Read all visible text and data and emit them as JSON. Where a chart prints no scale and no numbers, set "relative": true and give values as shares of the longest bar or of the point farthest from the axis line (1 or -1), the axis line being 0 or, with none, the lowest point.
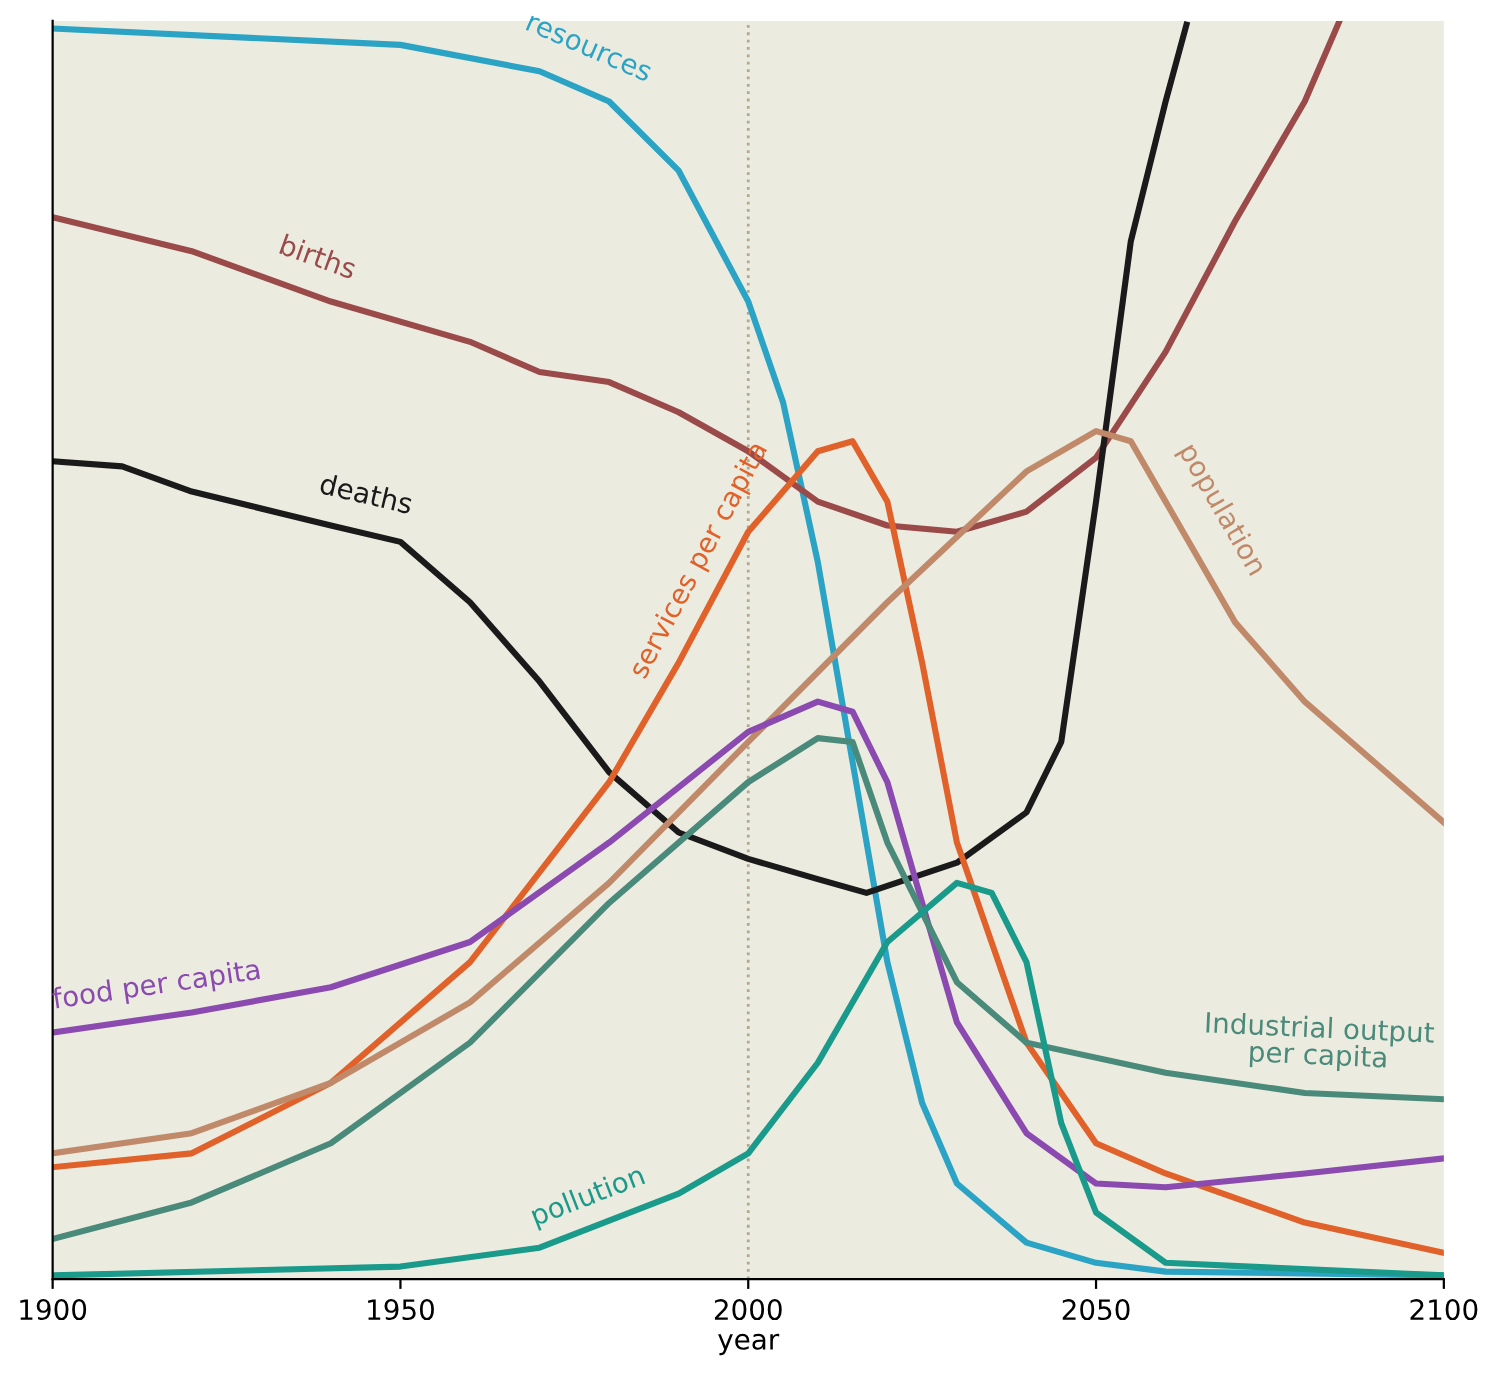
{
  "chart_data": {
    "type": "line",
    "relative": true,
    "xlabel": "year",
    "xlim": [
      1900,
      2100
    ],
    "xticks": [
      1900,
      1950,
      2000,
      2050,
      2100
    ],
    "grid": false,
    "legend": false,
    "line_style": "solid",
    "marker": "none",
    "ref_lines": [
      {
        "axis": "x",
        "value": 2000,
        "color": "#b0a890",
        "line_style": "dotted"
      }
    ],
    "series": [
      {
        "name": "resources",
        "color": "#2aa3c4",
        "x": [
          1900,
          1950,
          1970,
          1980,
          1990,
          2000,
          2005,
          2010,
          2015,
          2020,
          2025,
          2030,
          2040,
          2050,
          2060,
          2100
        ],
        "values": [
          0.994,
          0.981,
          0.96,
          0.936,
          0.881,
          0.777,
          0.697,
          0.57,
          0.411,
          0.252,
          0.14,
          0.076,
          0.029,
          0.013,
          0.006,
          0.003
        ]
      },
      {
        "name": "births",
        "color": "#9b4a4a",
        "x": [
          1900,
          1920,
          1940,
          1960,
          1970,
          1980,
          1990,
          2000,
          2010,
          2020,
          2030,
          2040,
          2050,
          2060,
          2070,
          2080,
          2085
        ],
        "values": [
          0.844,
          0.817,
          0.777,
          0.745,
          0.721,
          0.713,
          0.689,
          0.658,
          0.618,
          0.599,
          0.594,
          0.61,
          0.653,
          0.737,
          0.841,
          0.936,
          1.0
        ]
      },
      {
        "name": "deaths",
        "color": "#1a1a1a",
        "x": [
          1900,
          1910,
          1920,
          1940,
          1950,
          1960,
          1970,
          1980,
          1990,
          2000,
          2010,
          2017,
          2030,
          2040,
          2045,
          2050,
          2055,
          2060,
          2063
        ],
        "values": [
          0.65,
          0.646,
          0.626,
          0.599,
          0.586,
          0.538,
          0.475,
          0.403,
          0.355,
          0.334,
          0.318,
          0.307,
          0.331,
          0.371,
          0.427,
          0.618,
          0.825,
          0.936,
          0.997
        ]
      },
      {
        "name": "services per capita",
        "color": "#e0622a",
        "x": [
          1900,
          1920,
          1940,
          1960,
          1980,
          1990,
          2000,
          2010,
          2015,
          2020,
          2025,
          2030,
          2040,
          2050,
          2060,
          2080,
          2100
        ],
        "values": [
          0.089,
          0.1,
          0.156,
          0.252,
          0.395,
          0.49,
          0.594,
          0.658,
          0.666,
          0.618,
          0.49,
          0.347,
          0.188,
          0.108,
          0.084,
          0.045,
          0.021
        ]
      },
      {
        "name": "population",
        "color": "#c08a6a",
        "x": [
          1900,
          1920,
          1940,
          1960,
          1980,
          2000,
          2020,
          2040,
          2050,
          2055,
          2060,
          2070,
          2080,
          2090,
          2100
        ],
        "values": [
          0.1,
          0.116,
          0.156,
          0.22,
          0.315,
          0.427,
          0.538,
          0.642,
          0.674,
          0.666,
          0.618,
          0.522,
          0.459,
          0.411,
          0.363
        ]
      },
      {
        "name": "food per capita",
        "color": "#8a4ab0",
        "x": [
          1900,
          1920,
          1940,
          1960,
          1980,
          2000,
          2010,
          2015,
          2020,
          2025,
          2030,
          2040,
          2050,
          2060,
          2080,
          2100
        ],
        "values": [
          0.196,
          0.212,
          0.232,
          0.268,
          0.347,
          0.435,
          0.459,
          0.451,
          0.395,
          0.299,
          0.204,
          0.116,
          0.076,
          0.073,
          0.084,
          0.096
        ]
      },
      {
        "name": "Industrial output\nper capita",
        "color": "#4a8a7a",
        "x": [
          1900,
          1920,
          1940,
          1960,
          1980,
          2000,
          2010,
          2015,
          2020,
          2030,
          2040,
          2060,
          2080,
          2100
        ],
        "values": [
          0.032,
          0.061,
          0.108,
          0.188,
          0.299,
          0.395,
          0.43,
          0.427,
          0.347,
          0.236,
          0.188,
          0.164,
          0.148,
          0.143
        ]
      },
      {
        "name": "pollution",
        "color": "#1a9a8a",
        "x": [
          1900,
          1950,
          1970,
          1990,
          2000,
          2010,
          2020,
          2030,
          2035,
          2040,
          2045,
          2050,
          2060,
          2100
        ],
        "values": [
          0.003,
          0.01,
          0.025,
          0.068,
          0.1,
          0.172,
          0.268,
          0.315,
          0.307,
          0.252,
          0.124,
          0.053,
          0.013,
          0.003
        ]
      }
    ]
  }
}
